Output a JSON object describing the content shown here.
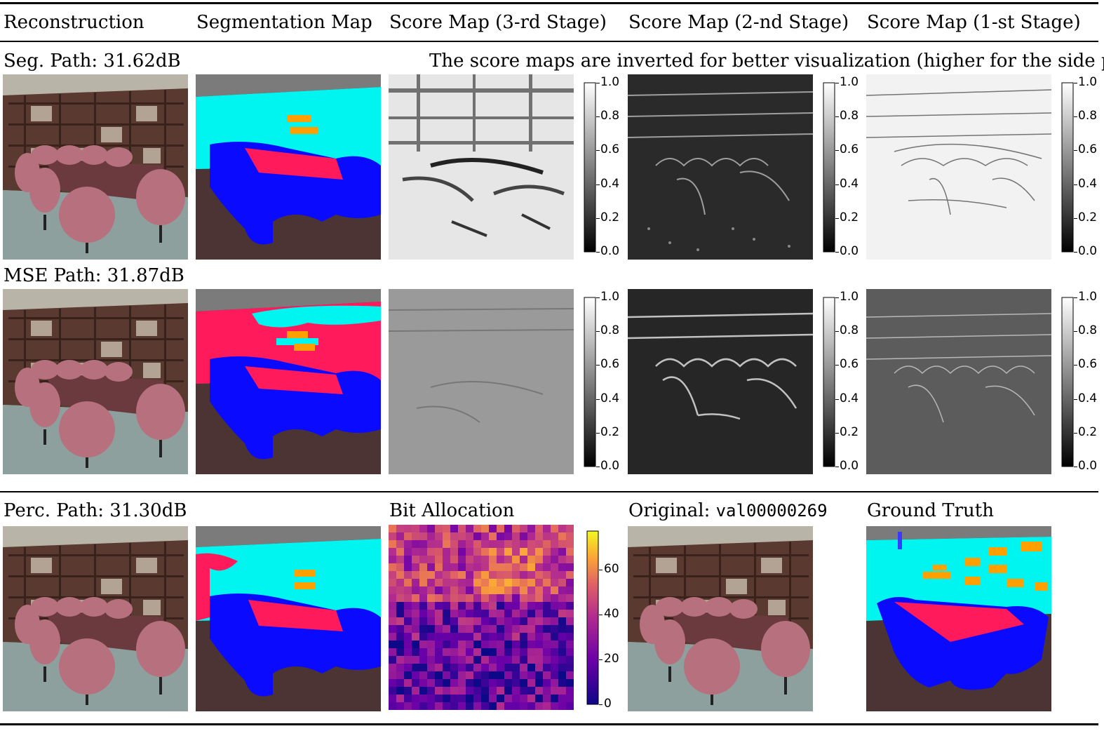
{
  "headers": {
    "reconstruction": "Reconstruction",
    "segmentation": "Segmentation Map",
    "score3": "Score Map (3-rd Stage)",
    "score2": "Score Map (2-nd Stage)",
    "score1": "Score Map (1-st Stage)"
  },
  "rows": {
    "seg_path": "Seg. Path: 31.62dB",
    "mse_path": "MSE Path: 31.87dB",
    "perc_path": "Perc. Path: 31.30dB"
  },
  "note": "The score maps are inverted for better visualization (higher for the side path).",
  "bit_allocation_title": "Bit Allocation",
  "original_label": "Original:",
  "original_id": "val00000269",
  "ground_truth_label": "Ground Truth",
  "score_colorbar_ticks": [
    "1.0",
    "0.8",
    "0.6",
    "0.4",
    "0.2",
    "0.0"
  ],
  "bit_colorbar_ticks": [
    "60",
    "40",
    "20",
    "0"
  ],
  "colors": {
    "seg_wall": "#00f5f0",
    "seg_table": "#ff1a5c",
    "seg_chair": "#0a0aff",
    "seg_floor": "#4c3434",
    "seg_ceiling": "#7b7b7b",
    "seg_books": "#ffa000"
  }
}
